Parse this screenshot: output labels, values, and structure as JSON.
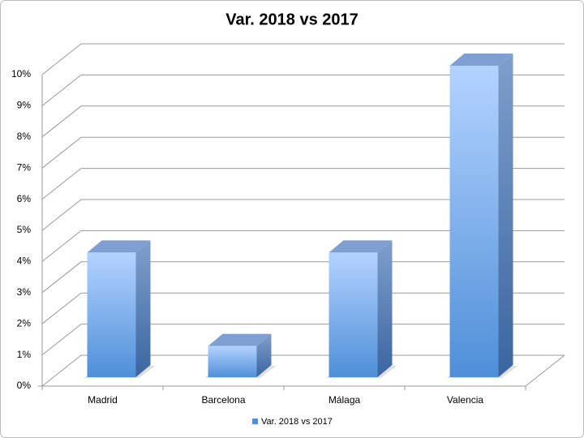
{
  "chart_data": {
    "type": "bar3d",
    "title": "Var. 2018 vs 2017",
    "categories": [
      "Madrid",
      "Barcelona",
      "Málaga",
      "Valencia"
    ],
    "series": [
      {
        "name": "Var. 2018 vs 2017",
        "color": "#4f8fd8",
        "values": [
          4,
          1,
          4,
          10
        ]
      }
    ],
    "ylim": [
      0,
      10
    ],
    "yticks": [
      {
        "value": 0,
        "label": "0%"
      },
      {
        "value": 1,
        "label": "1%"
      },
      {
        "value": 2,
        "label": "2%"
      },
      {
        "value": 3,
        "label": "3%"
      },
      {
        "value": 4,
        "label": "4%"
      },
      {
        "value": 5,
        "label": "5%"
      },
      {
        "value": 6,
        "label": "6%"
      },
      {
        "value": 7,
        "label": "7%"
      },
      {
        "value": 8,
        "label": "8%"
      },
      {
        "value": 9,
        "label": "9%"
      },
      {
        "value": 10,
        "label": "10%"
      }
    ],
    "grid": true,
    "legend": "bottom"
  }
}
